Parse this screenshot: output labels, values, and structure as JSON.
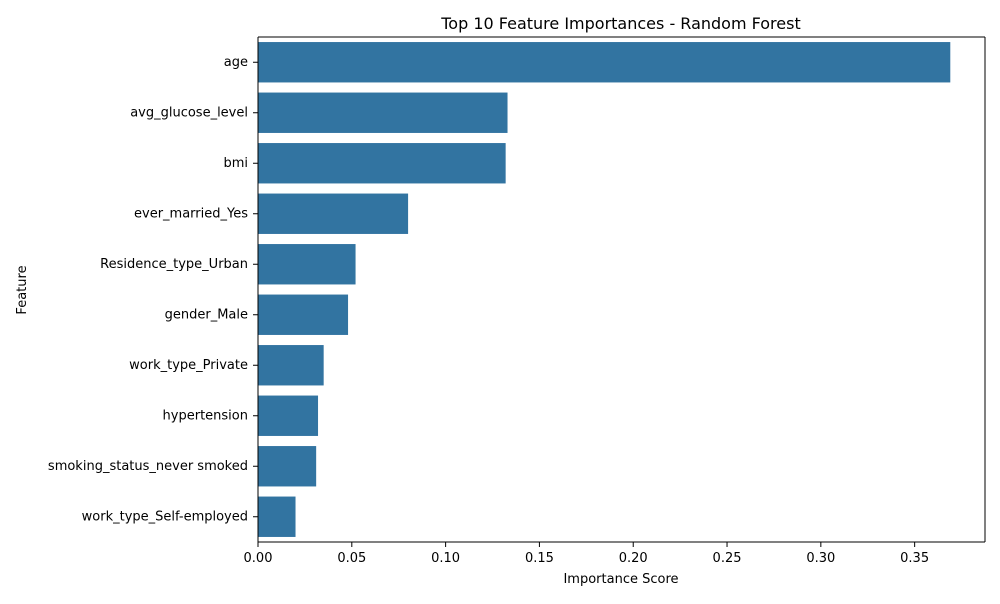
{
  "chart_data": {
    "type": "bar",
    "orientation": "horizontal",
    "title": "Top 10 Feature Importances - Random Forest",
    "xlabel": "Importance Score",
    "ylabel": "Feature",
    "categories": [
      "age",
      "avg_glucose_level",
      "bmi",
      "ever_married_Yes",
      "Residence_type_Urban",
      "gender_Male",
      "work_type_Private",
      "hypertension",
      "smoking_status_never smoked",
      "work_type_Self-employed"
    ],
    "values": [
      0.369,
      0.133,
      0.132,
      0.08,
      0.052,
      0.048,
      0.035,
      0.032,
      0.031,
      0.02
    ],
    "xlim": [
      0,
      0.3875
    ],
    "xticks": [
      0.0,
      0.05,
      0.1,
      0.15,
      0.2,
      0.25,
      0.3,
      0.35
    ],
    "xtick_labels": [
      "0.00",
      "0.05",
      "0.10",
      "0.15",
      "0.20",
      "0.25",
      "0.30",
      "0.35"
    ],
    "grid": false,
    "bar_color": "#3274a1"
  }
}
